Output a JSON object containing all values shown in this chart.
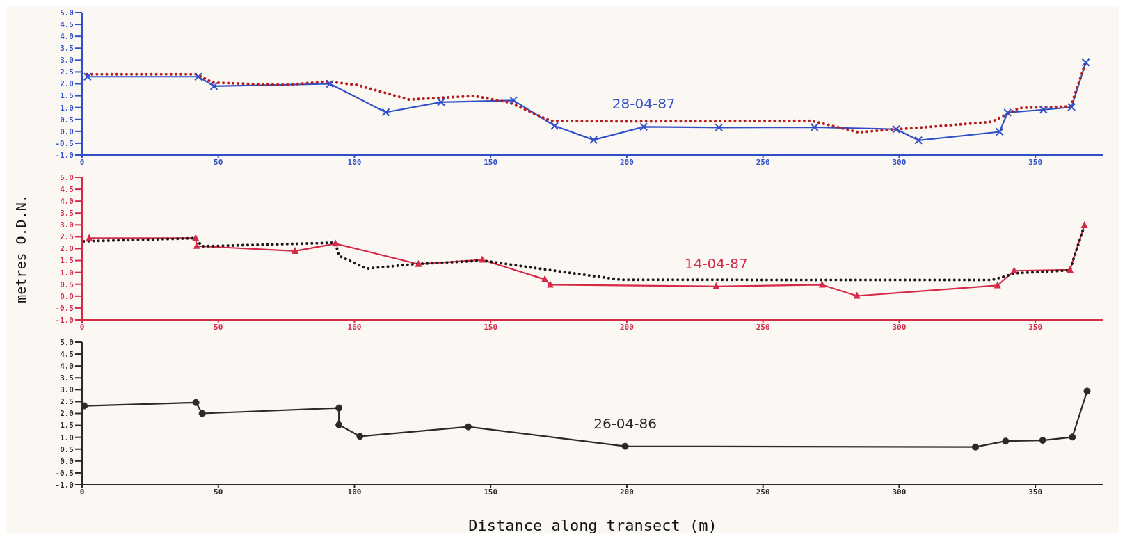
{
  "chart_data": [
    {
      "type": "line",
      "xlim": [
        0,
        375
      ],
      "xticks": [
        0,
        50,
        100,
        150,
        200,
        250,
        300,
        350
      ],
      "ylim": [
        -1,
        5
      ],
      "yticks": [
        {
          "value": -1,
          "label": "-1.0"
        },
        {
          "value": -0.5,
          "label": "-0.5"
        },
        {
          "value": 0,
          "label": "0.0"
        },
        {
          "value": 0.5,
          "label": "0.5"
        },
        {
          "value": 1,
          "label": "1.0"
        },
        {
          "value": 1.5,
          "label": "1.5"
        },
        {
          "value": 2,
          "label": "2.0"
        },
        {
          "value": 2.5,
          "label": "2.5"
        },
        {
          "value": 3,
          "label": "3.0"
        },
        {
          "value": 3.5,
          "label": "3.5"
        },
        {
          "value": 4,
          "label": "4.0"
        },
        {
          "value": 4.5,
          "label": "4.5"
        },
        {
          "value": 5,
          "label": "5.0"
        }
      ],
      "series": [
        {
          "color": "#b81c1c",
          "marker": "none",
          "line_style": "dotted",
          "x": [
            0,
            42,
            48,
            75,
            90,
            101,
            120,
            144,
            157,
            172,
            200,
            268,
            285,
            299,
            307,
            334,
            344,
            363,
            368.5
          ],
          "values": [
            2.4,
            2.4,
            2.05,
            1.95,
            2.1,
            1.95,
            1.34,
            1.49,
            1.21,
            0.44,
            0.42,
            0.44,
            -0.04,
            0.09,
            0.15,
            0.4,
            0.98,
            1.05,
            2.9
          ]
        },
        {
          "name": "28-04-87",
          "color": "#3050c8",
          "marker": "cross",
          "line_style": "solid",
          "x": [
            2,
            42.7,
            48.4,
            91,
            111.5,
            131.8,
            158.4,
            173.5,
            187.8,
            206.2,
            233.8,
            268.9,
            298.9,
            307.1,
            336.9,
            339.8,
            353,
            363.3,
            368.5
          ],
          "values": [
            2.3,
            2.3,
            1.9,
            2.0,
            0.8,
            1.23,
            1.3,
            0.23,
            -0.36,
            0.19,
            0.16,
            0.17,
            0.09,
            -0.38,
            -0.02,
            0.79,
            0.91,
            1.02,
            2.9
          ]
        }
      ]
    },
    {
      "type": "line",
      "xlim": [
        0,
        375
      ],
      "xticks": [
        0,
        50,
        100,
        150,
        200,
        250,
        300,
        350
      ],
      "ylim": [
        -1,
        5
      ],
      "ylabel": "metres O.D.N.",
      "yticks": [
        {
          "value": -1,
          "label": "-1.0"
        },
        {
          "value": -0.5,
          "label": "-0.5"
        },
        {
          "value": 0,
          "label": "0.0"
        },
        {
          "value": 0.5,
          "label": "0.5"
        },
        {
          "value": 1,
          "label": "1.0"
        },
        {
          "value": 1.5,
          "label": "1.5"
        },
        {
          "value": 2,
          "label": "2.0"
        },
        {
          "value": 2.5,
          "label": "2.5"
        },
        {
          "value": 3,
          "label": "3.0"
        },
        {
          "value": 3.5,
          "label": "3.5"
        },
        {
          "value": 4,
          "label": "4.0"
        },
        {
          "value": 4.5,
          "label": "4.5"
        },
        {
          "value": 5,
          "label": "5.0"
        }
      ],
      "series": [
        {
          "color": "#1a1a1a",
          "marker": "none",
          "line_style": "dotted",
          "x": [
            0.6,
            41.7,
            44,
            93,
            94.3,
            104.5,
            122,
            147,
            171,
            198,
            334,
            342.9,
            362.7,
            368
          ],
          "values": [
            2.31,
            2.44,
            2.1,
            2.25,
            1.7,
            1.16,
            1.35,
            1.5,
            1.11,
            0.69,
            0.68,
            0.97,
            1.09,
            2.98
          ]
        },
        {
          "name": "14-04-87",
          "color": "#d42a48",
          "marker": "triangle",
          "line_style": "solid",
          "x": [
            2.6,
            41.7,
            42.1,
            78.2,
            93,
            123.5,
            146.9,
            169.9,
            171.9,
            232.8,
            271.7,
            284.5,
            336.1,
            342.2,
            362.7,
            368
          ],
          "values": [
            2.44,
            2.44,
            2.11,
            1.9,
            2.21,
            1.35,
            1.53,
            0.71,
            0.48,
            0.41,
            0.48,
            0.01,
            0.45,
            1.07,
            1.11,
            2.98
          ]
        }
      ]
    },
    {
      "type": "line",
      "xlim": [
        0,
        375
      ],
      "xticks": [
        0,
        50,
        100,
        150,
        200,
        250,
        300,
        350
      ],
      "ylim": [
        -1,
        5
      ],
      "xlabel": "Distance along transect   (m)",
      "yticks": [
        {
          "value": -1,
          "label": "-1.0"
        },
        {
          "value": -0.5,
          "label": "-0.5"
        },
        {
          "value": 0,
          "label": "0.0"
        },
        {
          "value": 0.5,
          "label": "0.5"
        },
        {
          "value": 1,
          "label": "1.0"
        },
        {
          "value": 1.5,
          "label": "1.5"
        },
        {
          "value": 2,
          "label": "2.0"
        },
        {
          "value": 2.5,
          "label": "2.5"
        },
        {
          "value": 3,
          "label": "3.0"
        },
        {
          "value": 3.5,
          "label": "3.5"
        },
        {
          "value": 4,
          "label": "4.0"
        },
        {
          "value": 4.5,
          "label": "4.5"
        },
        {
          "value": 5,
          "label": "5.0"
        }
      ],
      "series": [
        {
          "name": "26-04-86",
          "color": "#2a2a2a",
          "marker": "circle",
          "line_style": "solid",
          "x": [
            0.8,
            41.8,
            44.1,
            94.3,
            94.3,
            102,
            141.8,
            199.4,
            328,
            339.1,
            352.7,
            363.6,
            369
          ],
          "values": [
            2.32,
            2.46,
            2.0,
            2.23,
            1.52,
            1.04,
            1.44,
            0.62,
            0.59,
            0.84,
            0.87,
            1.01,
            2.94
          ]
        }
      ]
    }
  ]
}
